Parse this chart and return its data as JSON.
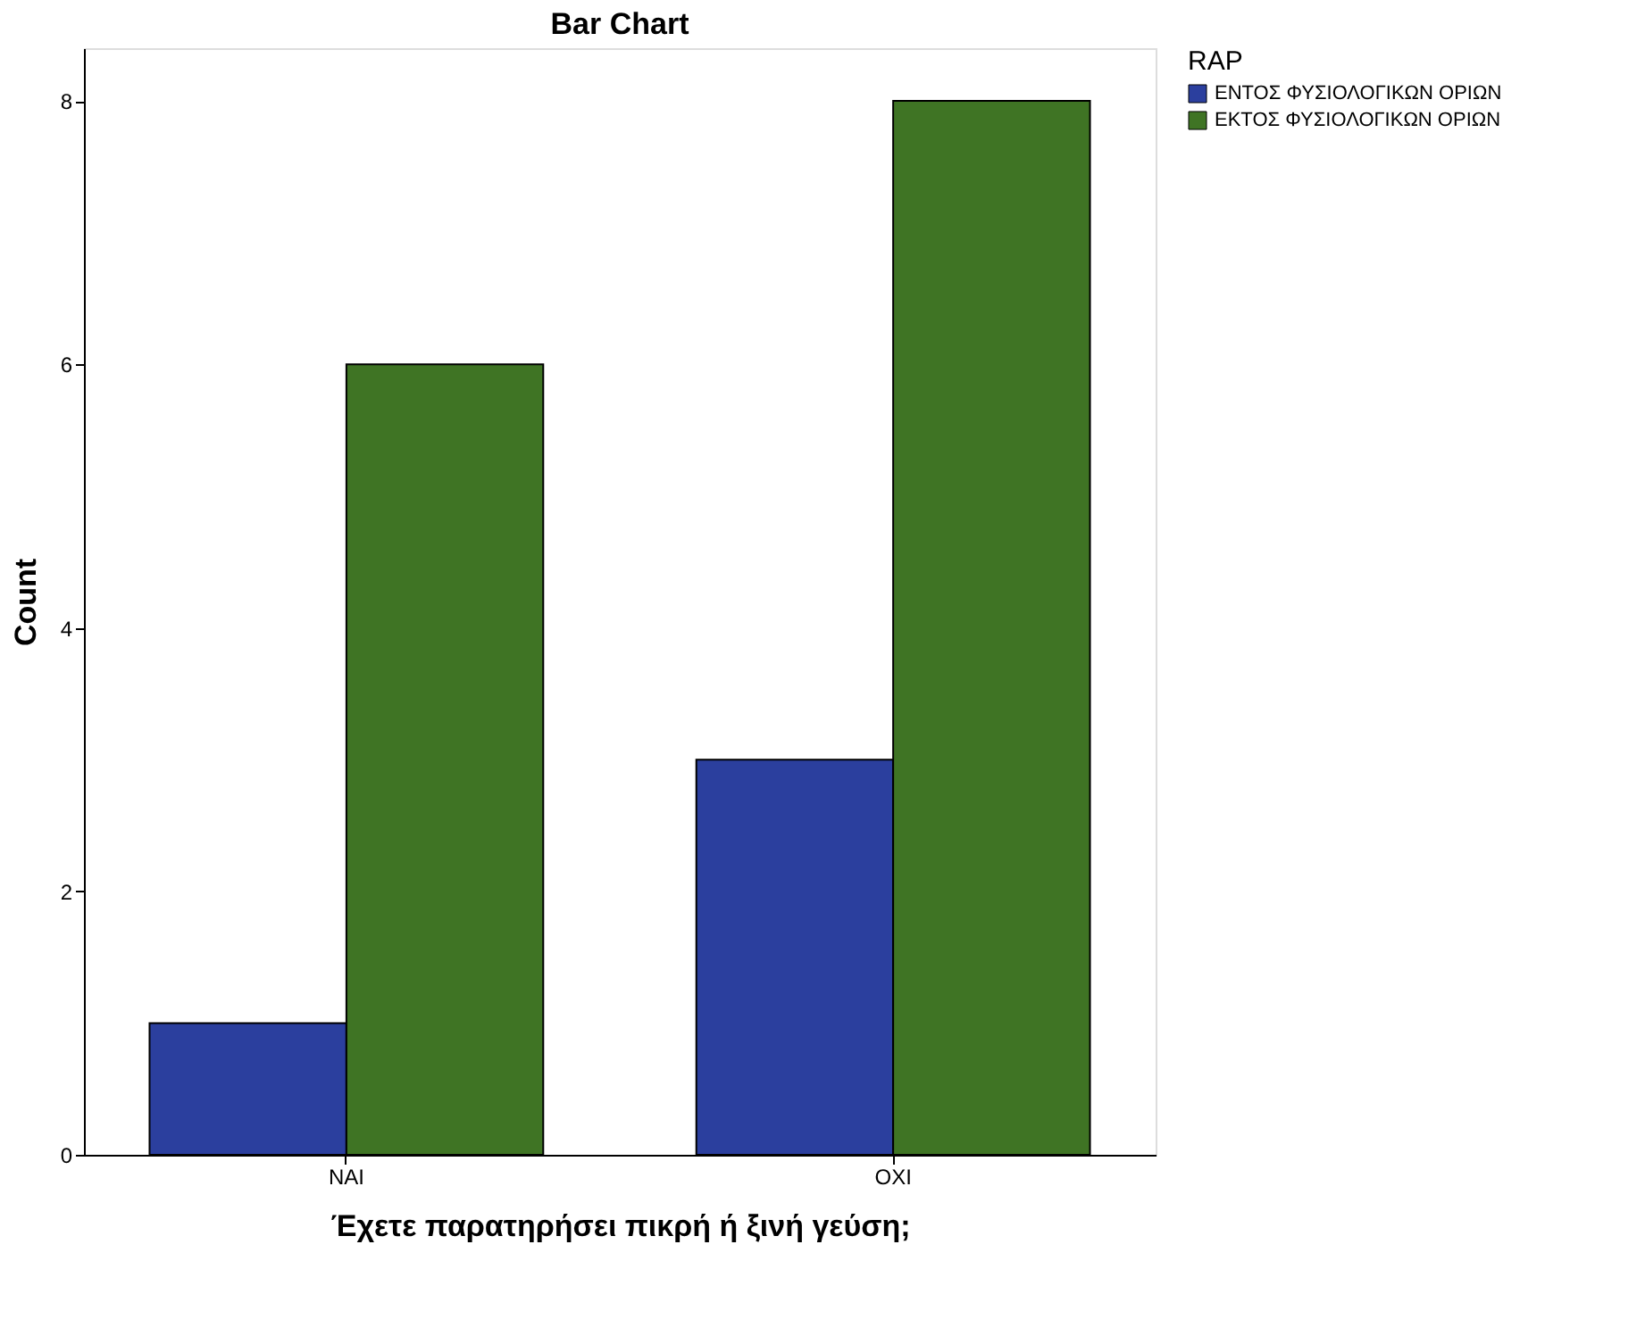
{
  "chart_data": {
    "type": "bar",
    "title": "Bar Chart",
    "xlabel": "Έχετε παρατηρήσει πικρή ή ξινή γεύση;",
    "ylabel": "Count",
    "legend_title": "RAP",
    "categories": [
      "ΝΑΙ",
      "ΟΧΙ"
    ],
    "series": [
      {
        "name": "ΕΝΤΟΣ ΦΥΣΙΟΛΟΓΙΚΩΝ ΟΡΙΩΝ",
        "color": "#2b3f9e",
        "values": [
          1,
          3
        ]
      },
      {
        "name": "ΕΚΤΟΣ ΦΥΣΙΟΛΟΓΙΚΩΝ ΟΡΙΩΝ",
        "color": "#3f7424",
        "values": [
          6,
          8
        ]
      }
    ],
    "ylim": [
      0,
      8.4
    ],
    "yticks": [
      0,
      2,
      4,
      6,
      8
    ],
    "grid": false,
    "legend": "top right"
  }
}
